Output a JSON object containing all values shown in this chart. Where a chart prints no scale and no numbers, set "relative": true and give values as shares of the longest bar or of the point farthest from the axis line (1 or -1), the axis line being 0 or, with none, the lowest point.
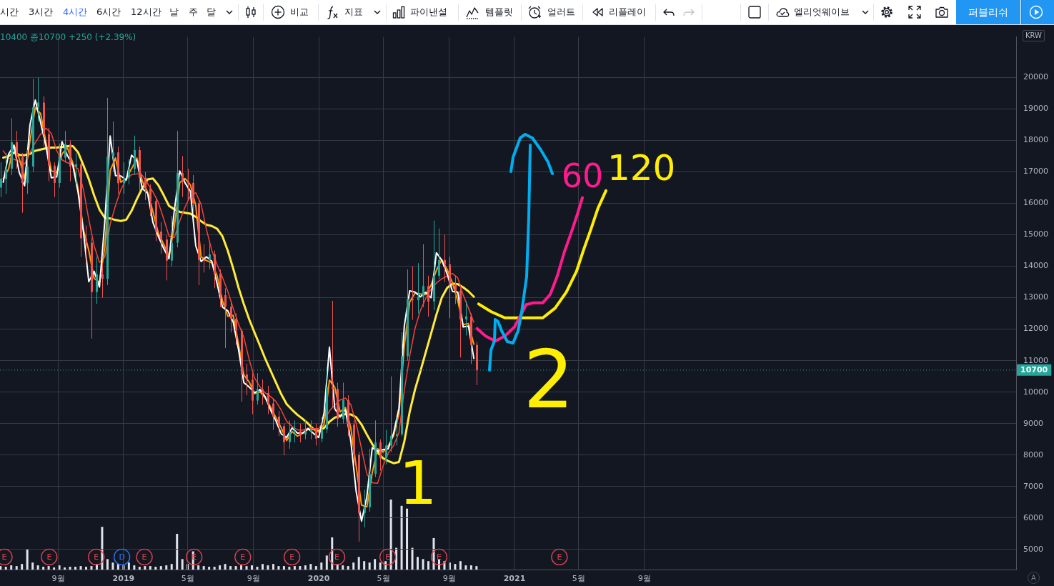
{
  "chart_data": [
    {
      "type": "candlestick",
      "x": [
        "2018-05-16",
        "2018-05-26",
        "2018-06-05",
        "2018-06-15",
        "2018-06-25",
        "2018-07-05",
        "2018-07-15",
        "2018-07-25",
        "2018-08-04",
        "2018-08-14",
        "2018-08-24",
        "2018-09-03",
        "2018-09-13",
        "2018-09-23",
        "2018-10-03",
        "2018-10-13",
        "2018-10-23",
        "2018-11-02",
        "2018-11-12",
        "2018-11-22",
        "2018-12-02",
        "2018-12-12",
        "2018-12-22",
        "2019-01-01",
        "2019-01-11",
        "2019-01-21",
        "2019-01-31",
        "2019-02-10",
        "2019-02-20",
        "2019-03-02",
        "2019-03-12",
        "2019-03-22",
        "2019-04-01",
        "2019-04-11",
        "2019-04-21",
        "2019-05-01",
        "2019-05-11",
        "2019-05-21",
        "2019-05-31",
        "2019-06-10",
        "2019-06-20",
        "2019-06-30",
        "2019-07-10",
        "2019-07-20",
        "2019-07-30",
        "2019-08-09",
        "2019-08-19",
        "2019-08-29",
        "2019-09-08",
        "2019-09-18",
        "2019-09-28",
        "2019-10-08",
        "2019-10-18",
        "2019-10-28",
        "2019-11-07",
        "2019-11-17",
        "2019-11-27",
        "2019-12-07",
        "2019-12-17",
        "2019-12-27",
        "2020-01-06",
        "2020-01-16",
        "2020-01-26",
        "2020-02-05",
        "2020-02-15",
        "2020-02-25",
        "2020-03-06",
        "2020-03-16",
        "2020-03-26",
        "2020-04-05",
        "2020-04-15",
        "2020-04-25",
        "2020-05-05",
        "2020-05-15",
        "2020-05-25",
        "2020-06-04",
        "2020-06-14",
        "2020-06-24",
        "2020-07-04",
        "2020-07-14",
        "2020-07-24",
        "2020-08-03",
        "2020-08-13",
        "2020-08-23",
        "2020-09-02",
        "2020-09-12",
        "2020-09-22",
        "2020-10-02",
        "2020-10-12",
        "2020-10-22"
      ],
      "ohlc": [
        [
          16500,
          17300,
          16200,
          16780
        ],
        [
          16780,
          17600,
          16300,
          17100
        ],
        [
          17100,
          18700,
          16900,
          17940
        ],
        [
          17940,
          18300,
          17100,
          17470
        ],
        [
          17470,
          17600,
          15700,
          16640
        ],
        [
          16640,
          17700,
          16300,
          17170
        ],
        [
          17170,
          19950,
          17000,
          19050
        ],
        [
          19050,
          20000,
          18600,
          19200
        ],
        [
          19200,
          19400,
          17800,
          18200
        ],
        [
          18200,
          18400,
          16700,
          17200
        ],
        [
          17200,
          17300,
          16200,
          16650
        ],
        [
          16650,
          17900,
          16500,
          17450
        ],
        [
          17450,
          18300,
          17300,
          17880
        ],
        [
          17880,
          18000,
          16700,
          17170
        ],
        [
          17170,
          17600,
          16600,
          17240
        ],
        [
          17240,
          17300,
          14300,
          14890
        ],
        [
          14890,
          15300,
          14100,
          14750
        ],
        [
          14750,
          14900,
          11700,
          13180
        ],
        [
          13180,
          14300,
          12800,
          13740
        ],
        [
          13740,
          14100,
          13000,
          13600
        ],
        [
          13600,
          19350,
          13400,
          17480
        ],
        [
          17480,
          18600,
          17000,
          17620
        ],
        [
          17620,
          17800,
          16300,
          16640
        ],
        [
          16640,
          17300,
          16300,
          16810
        ],
        [
          16810,
          17400,
          16600,
          17090
        ],
        [
          17090,
          18150,
          16900,
          17690
        ],
        [
          17690,
          17800,
          16400,
          16810
        ],
        [
          16810,
          17000,
          16100,
          16470
        ],
        [
          16470,
          16600,
          15600,
          16070
        ],
        [
          16070,
          16200,
          14800,
          15100
        ],
        [
          15100,
          15400,
          14400,
          14850
        ],
        [
          14850,
          15000,
          13550,
          14180
        ],
        [
          14180,
          15600,
          14000,
          14750
        ],
        [
          14750,
          18300,
          14600,
          16960
        ],
        [
          16960,
          17500,
          16200,
          16700
        ],
        [
          16700,
          17100,
          16100,
          16650
        ],
        [
          16650,
          16900,
          15700,
          16000
        ],
        [
          16000,
          16100,
          13400,
          14200
        ],
        [
          14200,
          14700,
          13800,
          14190
        ],
        [
          14190,
          14800,
          13900,
          14380
        ],
        [
          14380,
          14500,
          13300,
          13770
        ],
        [
          13770,
          13900,
          12700,
          13080
        ],
        [
          13080,
          13300,
          11400,
          12710
        ],
        [
          12710,
          12900,
          11900,
          12330
        ],
        [
          12330,
          12500,
          11500,
          11950
        ],
        [
          11950,
          12000,
          9700,
          10560
        ],
        [
          10560,
          10900,
          9900,
          10390
        ],
        [
          10390,
          10600,
          9300,
          9730
        ],
        [
          9730,
          10600,
          9600,
          10090
        ],
        [
          10090,
          10400,
          9600,
          9970
        ],
        [
          9970,
          10200,
          9300,
          9640
        ],
        [
          9640,
          9800,
          8800,
          9220
        ],
        [
          9220,
          9400,
          8600,
          8920
        ],
        [
          8920,
          9000,
          8000,
          8410
        ],
        [
          8410,
          9100,
          8200,
          8740
        ],
        [
          8740,
          9100,
          8400,
          8760
        ],
        [
          8760,
          9000,
          8400,
          8660
        ],
        [
          8660,
          9100,
          8500,
          8750
        ],
        [
          8750,
          9100,
          8500,
          8830
        ],
        [
          8830,
          9000,
          8300,
          8520
        ],
        [
          8520,
          9200,
          8400,
          8820
        ],
        [
          8820,
          10800,
          8700,
          10150
        ],
        [
          10150,
          12900,
          9500,
          10100
        ],
        [
          10100,
          10300,
          8900,
          9150
        ],
        [
          9150,
          10300,
          9000,
          9750
        ],
        [
          9750,
          9900,
          8600,
          8970
        ],
        [
          8970,
          9100,
          7600,
          8000
        ],
        [
          8000,
          8100,
          5250,
          6160
        ],
        [
          6160,
          6900,
          5700,
          6340
        ],
        [
          6340,
          8200,
          6200,
          7400
        ],
        [
          7400,
          9100,
          7300,
          8400
        ],
        [
          8400,
          8500,
          7500,
          7900
        ],
        [
          7900,
          8800,
          7700,
          8300
        ],
        [
          8300,
          10500,
          8100,
          8610
        ],
        [
          8610,
          9200,
          8300,
          8660
        ],
        [
          8660,
          11900,
          8600,
          11140
        ],
        [
          11140,
          13900,
          11000,
          12960
        ],
        [
          12960,
          14000,
          12300,
          12920
        ],
        [
          12920,
          14100,
          12500,
          13040
        ],
        [
          13040,
          14700,
          12700,
          13370
        ],
        [
          13370,
          13700,
          12400,
          12880
        ],
        [
          12880,
          15450,
          12600,
          13700
        ],
        [
          13700,
          15200,
          13600,
          14200
        ],
        [
          14200,
          15000,
          13500,
          14060
        ],
        [
          14060,
          14300,
          12350,
          13430
        ],
        [
          13430,
          13700,
          12800,
          13220
        ],
        [
          13220,
          13300,
          11100,
          12310
        ],
        [
          12310,
          12900,
          11800,
          12410
        ],
        [
          12410,
          12500,
          10900,
          11500
        ],
        [
          11500,
          11600,
          10220,
          10700
        ]
      ],
      "colors": [
        "#26a69a",
        "#26a69a",
        "#26a69a",
        "#ef5350",
        "#ef5350",
        "#26a69a",
        "#26a69a",
        "#26a69a",
        "#ef5350",
        "#ef5350",
        "#ef5350",
        "#26a69a",
        "#26a69a",
        "#ef5350",
        "#26a69a",
        "#ef5350",
        "#ef5350",
        "#ef5350",
        "#26a69a",
        "#ef5350",
        "#26a69a",
        "#26a69a",
        "#ef5350",
        "#26a69a",
        "#26a69a",
        "#26a69a",
        "#ef5350",
        "#ef5350",
        "#ef5350",
        "#ef5350",
        "#ef5350",
        "#ef5350",
        "#26a69a",
        "#26a69a",
        "#ef5350",
        "#ef5350",
        "#ef5350",
        "#ef5350",
        "#ef5350",
        "#26a69a",
        "#ef5350",
        "#ef5350",
        "#ef5350",
        "#ef5350",
        "#ef5350",
        "#ef5350",
        "#ef5350",
        "#ef5350",
        "#26a69a",
        "#ef5350",
        "#ef5350",
        "#ef5350",
        "#ef5350",
        "#ef5350",
        "#26a69a",
        "#26a69a",
        "#ef5350",
        "#26a69a",
        "#26a69a",
        "#ef5350",
        "#26a69a",
        "#26a69a",
        "#ef5350",
        "#ef5350",
        "#26a69a",
        "#ef5350",
        "#ef5350",
        "#ef5350",
        "#26a69a",
        "#26a69a",
        "#26a69a",
        "#ef5350",
        "#26a69a",
        "#26a69a",
        "#26a69a",
        "#26a69a",
        "#26a69a",
        "#ef5350",
        "#26a69a",
        "#26a69a",
        "#ef5350",
        "#26a69a",
        "#26a69a",
        "#ef5350",
        "#ef5350",
        "#ef5350",
        "#ef5350",
        "#26a69a",
        "#ef5350",
        "#ef5350"
      ],
      "series": [
        {
          "type": "line",
          "color": "#ffffff",
          "x": [
            "2018-05-21",
            "2018-05-31",
            "2018-06-10",
            "2018-06-20",
            "2018-06-30",
            "2018-07-10",
            "2018-07-20",
            "2018-07-30",
            "2018-08-09",
            "2018-08-19",
            "2018-08-29",
            "2018-09-08",
            "2018-09-18",
            "2018-09-28",
            "2018-10-08",
            "2018-10-18",
            "2018-10-28",
            "2018-11-07",
            "2018-11-17",
            "2018-11-27",
            "2018-12-07",
            "2018-12-17",
            "2018-12-27",
            "2019-01-06",
            "2019-01-16",
            "2019-01-26",
            "2019-02-05",
            "2019-02-15",
            "2019-02-25",
            "2019-03-07",
            "2019-03-17",
            "2019-03-27",
            "2019-04-06",
            "2019-04-16",
            "2019-04-26",
            "2019-05-06",
            "2019-05-16",
            "2019-05-26",
            "2019-06-05",
            "2019-06-15",
            "2019-06-25",
            "2019-07-05",
            "2019-07-15",
            "2019-07-25",
            "2019-08-04",
            "2019-08-14",
            "2019-08-24",
            "2019-09-03",
            "2019-09-13",
            "2019-09-23",
            "2019-10-03",
            "2019-10-13",
            "2019-10-23",
            "2019-11-02",
            "2019-11-12",
            "2019-11-22",
            "2019-12-02",
            "2019-12-12",
            "2019-12-22",
            "2020-01-01",
            "2020-01-11",
            "2020-01-21",
            "2020-01-31",
            "2020-02-10",
            "2020-02-20",
            "2020-03-01",
            "2020-03-11",
            "2020-03-21",
            "2020-03-31",
            "2020-04-10",
            "2020-04-20",
            "2020-04-30",
            "2020-05-10",
            "2020-05-20",
            "2020-05-30",
            "2020-06-09",
            "2020-06-19",
            "2020-06-29",
            "2020-07-09",
            "2020-07-19",
            "2020-07-29",
            "2020-08-08",
            "2020-08-18",
            "2020-08-28",
            "2020-09-07",
            "2020-09-17",
            "2020-09-27",
            "2020-10-07",
            "2020-10-17"
          ],
          "values": [
            16670,
            17560,
            17840,
            16980,
            16560,
            18490,
            19280,
            18560,
            17810,
            16810,
            16840,
            17960,
            17520,
            17220,
            16350,
            15100,
            13510,
            13840,
            13340,
            15430,
            18140,
            16880,
            16870,
            16740,
            17530,
            17350,
            16470,
            16320,
            15390,
            14950,
            14570,
            14240,
            15780,
            17030,
            16650,
            16380,
            14650,
            14150,
            14300,
            14160,
            13440,
            12700,
            12580,
            12230,
            11350,
            10300,
            10160,
            9980,
            10080,
            9850,
            9430,
            9080,
            8670,
            8560,
            8860,
            8700,
            8700,
            8840,
            8690,
            8560,
            9340,
            11430,
            9470,
            9210,
            9440,
            8440,
            6840,
            5900,
            6680,
            8230,
            8120,
            8170,
            8200,
            8700,
            9490,
            12100,
            13220,
            13180,
            13030,
            13170,
            13000,
            14430,
            14190,
            13760,
            13200,
            13180,
            12070,
            12100,
            11070
          ]
        },
        {
          "type": "line",
          "color": "#ff9800",
          "x": [
            "2018-05-21",
            "2018-05-31",
            "2018-06-10",
            "2018-06-20",
            "2018-06-30",
            "2018-07-10",
            "2018-07-20",
            "2018-07-30",
            "2018-08-09",
            "2018-08-19",
            "2018-08-29",
            "2018-09-08",
            "2018-09-18",
            "2018-09-28",
            "2018-10-08",
            "2018-10-18",
            "2018-10-28",
            "2018-11-07",
            "2018-11-17",
            "2018-11-27",
            "2018-12-07",
            "2018-12-17",
            "2018-12-27",
            "2019-01-06",
            "2019-01-16",
            "2019-01-26",
            "2019-02-05",
            "2019-02-15",
            "2019-02-25",
            "2019-03-07",
            "2019-03-17",
            "2019-03-27",
            "2019-04-06",
            "2019-04-16",
            "2019-04-26",
            "2019-05-06",
            "2019-05-16",
            "2019-05-26",
            "2019-06-05",
            "2019-06-15",
            "2019-06-25",
            "2019-07-05",
            "2019-07-15",
            "2019-07-25",
            "2019-08-04",
            "2019-08-14",
            "2019-08-24",
            "2019-09-03",
            "2019-09-13",
            "2019-09-23",
            "2019-10-03",
            "2019-10-13",
            "2019-10-23",
            "2019-11-02",
            "2019-11-12",
            "2019-11-22",
            "2019-12-02",
            "2019-12-12",
            "2019-12-22",
            "2020-01-01",
            "2020-01-11",
            "2020-01-21",
            "2020-01-31",
            "2020-02-10",
            "2020-02-20",
            "2020-03-01",
            "2020-03-11",
            "2020-03-21",
            "2020-03-31",
            "2020-04-10",
            "2020-04-20",
            "2020-04-30",
            "2020-05-10",
            "2020-05-20",
            "2020-05-30",
            "2020-06-09",
            "2020-06-19",
            "2020-06-29",
            "2020-07-09",
            "2020-07-19",
            "2020-07-29",
            "2020-08-08",
            "2020-08-18",
            "2020-08-28",
            "2020-09-07",
            "2020-09-17",
            "2020-09-27",
            "2020-10-07",
            "2020-10-17"
          ],
          "values": [
            16780,
            17090,
            17860,
            17420,
            16790,
            17980,
            19040,
            18850,
            17930,
            17030,
            16980,
            17570,
            17770,
            17290,
            16460,
            15160,
            14500,
            13610,
            13490,
            14610,
            17040,
            17440,
            16670,
            16790,
            17100,
            17440,
            16710,
            16360,
            15730,
            15060,
            14700,
            14320,
            15260,
            16660,
            16790,
            16590,
            15930,
            14300,
            14180,
            14110,
            13690,
            12900,
            12410,
            12440,
            11520,
            10540,
            10320,
            9950,
            10020,
            9810,
            9520,
            9190,
            8860,
            8460,
            8750,
            8600,
            8690,
            8820,
            8810,
            8730,
            8980,
            10380,
            10150,
            9370,
            9510,
            8860,
            7640,
            6410,
            6350,
            7430,
            8200,
            8090,
            8290,
            8610,
            9310,
            11470,
            12860,
            13150,
            13120,
            13100,
            13400,
            13870,
            14210,
            13900,
            13470,
            12900,
            12140,
            12180,
            11520
          ]
        },
        {
          "type": "line",
          "color": "#f44336",
          "x": [
            "2018-05-21",
            "2018-05-31",
            "2018-06-10",
            "2018-06-20",
            "2018-06-30",
            "2018-07-10",
            "2018-07-20",
            "2018-07-30",
            "2018-08-09",
            "2018-08-19",
            "2018-08-29",
            "2018-09-08",
            "2018-09-18",
            "2018-09-28",
            "2018-10-08",
            "2018-10-18",
            "2018-10-28",
            "2018-11-07",
            "2018-11-17",
            "2018-11-27",
            "2018-12-07",
            "2018-12-17",
            "2018-12-27",
            "2019-01-06",
            "2019-01-16",
            "2019-01-26",
            "2019-02-05",
            "2019-02-15",
            "2019-02-25",
            "2019-03-07",
            "2019-03-17",
            "2019-03-27",
            "2019-04-06",
            "2019-04-16",
            "2019-04-26",
            "2019-05-06",
            "2019-05-16",
            "2019-05-26",
            "2019-06-05",
            "2019-06-15",
            "2019-06-25",
            "2019-07-05",
            "2019-07-15",
            "2019-07-25",
            "2019-08-04",
            "2019-08-14",
            "2019-08-24",
            "2019-09-03",
            "2019-09-13",
            "2019-09-23",
            "2019-10-03",
            "2019-10-13",
            "2019-10-23",
            "2019-11-02",
            "2019-11-12",
            "2019-11-22",
            "2019-12-02",
            "2019-12-12",
            "2019-12-22",
            "2020-01-01",
            "2020-01-11",
            "2020-01-21",
            "2020-01-31",
            "2020-02-10",
            "2020-02-20",
            "2020-03-01",
            "2020-03-11",
            "2020-03-21",
            "2020-03-31",
            "2020-04-10",
            "2020-04-20",
            "2020-04-30",
            "2020-05-10",
            "2020-05-20",
            "2020-05-30",
            "2020-06-09",
            "2020-06-19",
            "2020-06-29",
            "2020-07-09",
            "2020-07-19",
            "2020-07-29",
            "2020-08-08",
            "2020-08-18",
            "2020-08-28",
            "2020-09-07",
            "2020-09-17",
            "2020-09-27",
            "2020-10-07",
            "2020-10-17"
          ],
          "values": [
            17670,
            17440,
            17400,
            17330,
            17250,
            17610,
            17930,
            18200,
            18390,
            18220,
            17670,
            17380,
            17290,
            17240,
            17090,
            16440,
            15490,
            14650,
            14120,
            14290,
            15340,
            15930,
            16430,
            16760,
            16910,
            16940,
            16890,
            16630,
            16360,
            16030,
            15510,
            14960,
            14910,
            15430,
            15880,
            16240,
            16340,
            15970,
            15170,
            14500,
            14050,
            13650,
            13200,
            12670,
            12170,
            11740,
            11030,
            10450,
            10170,
            9970,
            9860,
            9700,
            9420,
            9070,
            8910,
            8800,
            8790,
            8860,
            8840,
            8840,
            9090,
            9400,
            9590,
            9750,
            9810,
            9600,
            9000,
            8200,
            7400,
            7120,
            7100,
            7640,
            8060,
            8300,
            8710,
            10060,
            11130,
            12020,
            12590,
            12980,
            13270,
            13470,
            13600,
            13690,
            13770,
            13630,
            13090,
            12670,
            12220
          ]
        },
        {
          "type": "line",
          "color": "#ffeb3b",
          "x": [
            "2018-05-21",
            "2018-05-31",
            "2018-06-10",
            "2018-06-20",
            "2018-06-30",
            "2018-07-10",
            "2018-07-20",
            "2018-07-30",
            "2018-08-09",
            "2018-08-19",
            "2018-08-29",
            "2018-09-08",
            "2018-09-18",
            "2018-09-28",
            "2018-10-08",
            "2018-10-18",
            "2018-10-28",
            "2018-11-07",
            "2018-11-17",
            "2018-11-27",
            "2018-12-07",
            "2018-12-17",
            "2018-12-27",
            "2019-01-06",
            "2019-01-16",
            "2019-01-26",
            "2019-02-05",
            "2019-02-15",
            "2019-02-25",
            "2019-03-07",
            "2019-03-17",
            "2019-03-27",
            "2019-04-06",
            "2019-04-16",
            "2019-04-26",
            "2019-05-06",
            "2019-05-16",
            "2019-05-26",
            "2019-06-05",
            "2019-06-15",
            "2019-06-25",
            "2019-07-05",
            "2019-07-15",
            "2019-07-25",
            "2019-08-04",
            "2019-08-14",
            "2019-08-24",
            "2019-09-03",
            "2019-09-13",
            "2019-09-23",
            "2019-10-03",
            "2019-10-13",
            "2019-10-23",
            "2019-11-02",
            "2019-11-12",
            "2019-11-22",
            "2019-12-02",
            "2019-12-12",
            "2019-12-22",
            "2020-01-01",
            "2020-01-11",
            "2020-01-21",
            "2020-01-31",
            "2020-02-10",
            "2020-02-20",
            "2020-03-01",
            "2020-03-11",
            "2020-03-21",
            "2020-03-31",
            "2020-04-10",
            "2020-04-20",
            "2020-04-30",
            "2020-05-10",
            "2020-05-20",
            "2020-05-30",
            "2020-06-09",
            "2020-06-19",
            "2020-06-29",
            "2020-07-09",
            "2020-07-19",
            "2020-07-29",
            "2020-08-08",
            "2020-08-18",
            "2020-08-28",
            "2020-09-07",
            "2020-09-17",
            "2020-09-27",
            "2020-10-07",
            "2020-10-17"
          ],
          "values": [
            17450,
            17500,
            17610,
            17540,
            17530,
            17570,
            17670,
            17710,
            17750,
            17770,
            17770,
            17790,
            17820,
            17820,
            17620,
            17210,
            16770,
            16250,
            15800,
            15540,
            15520,
            15470,
            15440,
            15480,
            15760,
            16140,
            16480,
            16760,
            16790,
            16580,
            16260,
            15920,
            15810,
            15730,
            15700,
            15670,
            15570,
            15430,
            15320,
            15280,
            15190,
            14950,
            14490,
            13930,
            13320,
            12790,
            12310,
            11890,
            11480,
            11060,
            10680,
            10300,
            9930,
            9620,
            9440,
            9280,
            9150,
            9000,
            8830,
            8760,
            8860,
            9060,
            9190,
            9250,
            9300,
            9290,
            9200,
            8970,
            8650,
            8350,
            8090,
            7900,
            7810,
            7740,
            7780,
            8430,
            9370,
            10080,
            10660,
            11260,
            11860,
            12460,
            13000,
            13310,
            13450,
            13430,
            13330,
            13200,
            13030
          ]
        },
        {
          "type": "line",
          "name": "60",
          "color": "#ff1b8d",
          "x": [
            "2020-10-23",
            "2020-11-08",
            "2020-11-26",
            "2020-12-14",
            "2021-01-01",
            "2021-01-23",
            "2021-02-06",
            "2021-02-23",
            "2021-03-09",
            "2021-03-22",
            "2021-04-04",
            "2021-04-18",
            "2021-04-28",
            "2021-05-08"
          ],
          "values": [
            12020,
            11780,
            11620,
            11780,
            12070,
            12780,
            12840,
            12840,
            13110,
            13690,
            14440,
            15110,
            15620,
            16180
          ]
        },
        {
          "type": "line",
          "name": "120",
          "color": "#ffee00",
          "x": [
            "2020-10-26",
            "2020-11-18",
            "2020-12-14",
            "2021-02-23",
            "2021-03-18",
            "2021-04-08",
            "2021-04-27",
            "2021-05-10",
            "2021-05-24",
            "2021-06-06",
            "2021-06-21"
          ],
          "values": [
            12800,
            12560,
            12360,
            12360,
            12670,
            13180,
            13840,
            14510,
            15180,
            15840,
            16400
          ]
        }
      ],
      "xlim": [
        "2018-05-15",
        "2023-07-28"
      ],
      "xticks": [
        {
          "value": "2018-09",
          "label": "9월"
        },
        {
          "value": "2019-01",
          "label": "2019"
        },
        {
          "value": "2019-05",
          "label": "5월"
        },
        {
          "value": "2019-09",
          "label": "9월"
        },
        {
          "value": "2020-01",
          "label": "2020"
        },
        {
          "value": "2020-05",
          "label": "5월"
        },
        {
          "value": "2020-09",
          "label": "9월"
        },
        {
          "value": "2021-01",
          "label": "2021"
        },
        {
          "value": "2021-05",
          "label": "5월"
        },
        {
          "value": "2021-09",
          "label": "9월"
        }
      ],
      "ylim": [
        4360,
        21290
      ],
      "yticks": [
        5000,
        6000,
        7000,
        8000,
        9000,
        10000,
        11000,
        12000,
        13000,
        14000,
        15000,
        16000,
        17000,
        18000,
        19000,
        20000
      ],
      "ylabel": "KRW",
      "grid": true,
      "ref_lines": [
        {
          "axis": "y",
          "value": 10700,
          "label": "10700",
          "color": "#26a69a",
          "line_style": "dotted"
        }
      ],
      "annotations": [
        "시간",
        "3시간",
        "4시간",
        "6시간",
        "12시간",
        "날",
        "주",
        "달",
        "비교",
        "지표",
        "파이낸셜",
        "템플릿",
        "얼러트",
        "리플레이",
        "엘리엇웨이브",
        "퍼블리쉬",
        "10400 종10700 +250 (+2.39%)",
        "A",
        "1",
        "2",
        {
          "text": "E",
          "x": "2018-05-23",
          "y": 4760
        },
        {
          "text": "E",
          "x": "2018-08-15",
          "y": 4760
        },
        {
          "text": "E",
          "x": "2018-11-11",
          "y": 4760
        },
        {
          "text": "D",
          "x": "2018-12-29",
          "y": 4760
        },
        {
          "text": "E",
          "x": "2019-02-09",
          "y": 4760
        },
        {
          "text": "E",
          "x": "2019-05-13",
          "y": 4760
        },
        {
          "text": "E",
          "x": "2019-08-12",
          "y": 4760
        },
        {
          "text": "E",
          "x": "2019-11-12",
          "y": 4760
        },
        {
          "text": "E",
          "x": "2020-02-04",
          "y": 4760
        },
        {
          "text": "E",
          "x": "2020-05-09",
          "y": 4760
        },
        {
          "text": "E",
          "x": "2020-08-13",
          "y": 4760
        },
        {
          "text": "E",
          "x": "2021-03-26",
          "y": 4760
        }
      ]
    },
    {
      "type": "bar",
      "relative": true,
      "x": [
        "2018-05-16",
        "2018-05-26",
        "2018-06-05",
        "2018-06-15",
        "2018-06-25",
        "2018-07-05",
        "2018-07-15",
        "2018-07-25",
        "2018-08-04",
        "2018-08-14",
        "2018-08-24",
        "2018-09-03",
        "2018-09-13",
        "2018-09-23",
        "2018-10-03",
        "2018-10-13",
        "2018-10-23",
        "2018-11-02",
        "2018-11-12",
        "2018-11-22",
        "2018-12-02",
        "2018-12-12",
        "2018-12-22",
        "2019-01-01",
        "2019-01-11",
        "2019-01-21",
        "2019-01-31",
        "2019-02-10",
        "2019-02-20",
        "2019-03-02",
        "2019-03-12",
        "2019-03-22",
        "2019-04-01",
        "2019-04-11",
        "2019-04-21",
        "2019-05-01",
        "2019-05-11",
        "2019-05-21",
        "2019-05-31",
        "2019-06-10",
        "2019-06-20",
        "2019-06-30",
        "2019-07-10",
        "2019-07-20",
        "2019-07-30",
        "2019-08-09",
        "2019-08-19",
        "2019-08-29",
        "2019-09-08",
        "2019-09-18",
        "2019-09-28",
        "2019-10-08",
        "2019-10-18",
        "2019-10-28",
        "2019-11-07",
        "2019-11-17",
        "2019-11-27",
        "2019-12-07",
        "2019-12-17",
        "2019-12-27",
        "2020-01-06",
        "2020-01-16",
        "2020-01-26",
        "2020-02-05",
        "2020-02-15",
        "2020-02-25",
        "2020-03-06",
        "2020-03-16",
        "2020-03-26",
        "2020-04-05",
        "2020-04-15",
        "2020-04-25",
        "2020-05-05",
        "2020-05-15",
        "2020-05-25",
        "2020-06-04",
        "2020-06-14",
        "2020-06-24",
        "2020-07-04",
        "2020-07-14",
        "2020-07-24",
        "2020-08-03",
        "2020-08-13",
        "2020-08-23",
        "2020-09-02",
        "2020-09-12",
        "2020-09-22",
        "2020-10-02",
        "2020-10-12",
        "2020-10-22"
      ],
      "xlim": [
        "2018-05-15",
        "2023-07-28"
      ],
      "values": [
        0.05,
        0.04,
        0.06,
        0.05,
        0.08,
        0.29,
        0.1,
        0.06,
        0.04,
        0.05,
        0.03,
        0.06,
        0.03,
        0.04,
        0.04,
        0.05,
        0.04,
        0.05,
        0.08,
        0.61,
        0.15,
        0.1,
        0.08,
        0.06,
        0.1,
        0.06,
        0.04,
        0.05,
        0.05,
        0.04,
        0.05,
        0.06,
        0.08,
        0.51,
        0.15,
        0.08,
        0.26,
        0.06,
        0.05,
        0.04,
        0.04,
        0.06,
        0.08,
        0.05,
        0.05,
        0.06,
        0.05,
        0.06,
        0.04,
        0.08,
        0.06,
        0.08,
        0.05,
        0.05,
        0.04,
        0.05,
        0.05,
        0.06,
        0.08,
        0.05,
        0.1,
        0.2,
        0.46,
        0.08,
        0.06,
        0.05,
        0.1,
        0.18,
        0.12,
        0.1,
        0.15,
        0.1,
        0.12,
        1,
        0.31,
        0.91,
        0.87,
        0.31,
        0.18,
        0.15,
        0.12,
        0.45,
        0.15,
        0.12,
        0.1,
        0.08,
        0.12,
        0.06,
        0.06,
        0.05
      ],
      "color": "#e0e3eb",
      "tick_labels": false
    }
  ]
}
